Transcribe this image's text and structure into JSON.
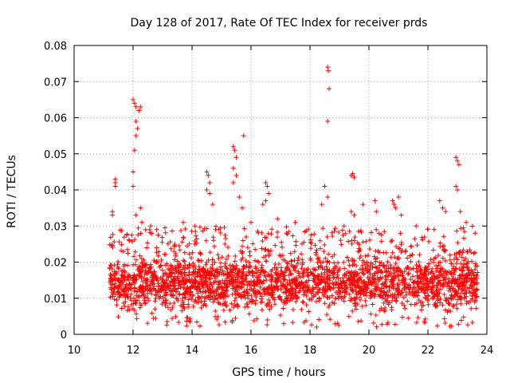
{
  "chart_data": {
    "type": "scatter",
    "title": "Day 128 of 2017, Rate Of TEC Index for receiver prds",
    "xlabel": "GPS time / hours",
    "ylabel": "ROTI / TECUs",
    "xlim": [
      10,
      24
    ],
    "ylim": [
      0,
      0.08
    ],
    "xticks": [
      10,
      12,
      14,
      16,
      18,
      20,
      22,
      24
    ],
    "yticks": [
      0,
      0.01,
      0.02,
      0.03,
      0.04,
      0.05,
      0.06,
      0.07,
      0.08
    ],
    "xtick_labels": [
      "10",
      "12",
      "14",
      "16",
      "18",
      "20",
      "22",
      "24"
    ],
    "ytick_labels": [
      "0",
      "0.01",
      "0.02",
      "0.03",
      "0.04",
      "0.05",
      "0.06",
      "0.07",
      "0.08"
    ],
    "grid": "dotted",
    "marker": "+",
    "marker_color": "#ff0000",
    "data_range_hours": [
      11.2,
      23.7
    ],
    "baseline_band": [
      0.004,
      0.022
    ],
    "outliers": [
      {
        "x": 11.3,
        "y": 0.034
      },
      {
        "x": 11.3,
        "y": 0.033
      },
      {
        "x": 11.4,
        "y": 0.043
      },
      {
        "x": 11.4,
        "y": 0.042
      },
      {
        "x": 11.4,
        "y": 0.041
      },
      {
        "x": 12.0,
        "y": 0.065
      },
      {
        "x": 12.05,
        "y": 0.064
      },
      {
        "x": 12.1,
        "y": 0.063
      },
      {
        "x": 12.2,
        "y": 0.062
      },
      {
        "x": 12.25,
        "y": 0.063
      },
      {
        "x": 12.1,
        "y": 0.059
      },
      {
        "x": 12.15,
        "y": 0.057
      },
      {
        "x": 12.1,
        "y": 0.055
      },
      {
        "x": 12.05,
        "y": 0.051
      },
      {
        "x": 12.0,
        "y": 0.045
      },
      {
        "x": 12.0,
        "y": 0.041
      },
      {
        "x": 12.25,
        "y": 0.035
      },
      {
        "x": 12.1,
        "y": 0.033
      },
      {
        "x": 12.3,
        "y": 0.031
      },
      {
        "x": 14.5,
        "y": 0.045
      },
      {
        "x": 14.55,
        "y": 0.044
      },
      {
        "x": 14.6,
        "y": 0.042
      },
      {
        "x": 14.5,
        "y": 0.04
      },
      {
        "x": 14.6,
        "y": 0.039
      },
      {
        "x": 14.7,
        "y": 0.036
      },
      {
        "x": 15.4,
        "y": 0.052
      },
      {
        "x": 15.45,
        "y": 0.051
      },
      {
        "x": 15.5,
        "y": 0.049
      },
      {
        "x": 15.4,
        "y": 0.046
      },
      {
        "x": 15.5,
        "y": 0.044
      },
      {
        "x": 15.4,
        "y": 0.042
      },
      {
        "x": 15.75,
        "y": 0.055
      },
      {
        "x": 15.6,
        "y": 0.038
      },
      {
        "x": 15.7,
        "y": 0.035
      },
      {
        "x": 16.5,
        "y": 0.042
      },
      {
        "x": 16.55,
        "y": 0.041
      },
      {
        "x": 16.6,
        "y": 0.039
      },
      {
        "x": 16.5,
        "y": 0.037
      },
      {
        "x": 16.4,
        "y": 0.036
      },
      {
        "x": 18.5,
        "y": 0.041
      },
      {
        "x": 18.6,
        "y": 0.038
      },
      {
        "x": 18.4,
        "y": 0.036
      },
      {
        "x": 18.6,
        "y": 0.074
      },
      {
        "x": 18.62,
        "y": 0.073
      },
      {
        "x": 18.65,
        "y": 0.068
      },
      {
        "x": 18.6,
        "y": 0.059
      },
      {
        "x": 19.4,
        "y": 0.044
      },
      {
        "x": 19.45,
        "y": 0.0445
      },
      {
        "x": 19.5,
        "y": 0.0435
      },
      {
        "x": 19.4,
        "y": 0.034
      },
      {
        "x": 19.5,
        "y": 0.033
      },
      {
        "x": 19.8,
        "y": 0.036
      },
      {
        "x": 20.2,
        "y": 0.037
      },
      {
        "x": 20.25,
        "y": 0.034
      },
      {
        "x": 20.8,
        "y": 0.037
      },
      {
        "x": 20.85,
        "y": 0.036
      },
      {
        "x": 21.0,
        "y": 0.038
      },
      {
        "x": 20.9,
        "y": 0.035
      },
      {
        "x": 21.1,
        "y": 0.033
      },
      {
        "x": 22.4,
        "y": 0.037
      },
      {
        "x": 22.5,
        "y": 0.035
      },
      {
        "x": 22.6,
        "y": 0.034
      },
      {
        "x": 22.95,
        "y": 0.049
      },
      {
        "x": 23.0,
        "y": 0.048
      },
      {
        "x": 23.05,
        "y": 0.047
      },
      {
        "x": 22.95,
        "y": 0.041
      },
      {
        "x": 23.0,
        "y": 0.04
      },
      {
        "x": 23.1,
        "y": 0.034
      },
      {
        "x": 13.7,
        "y": 0.031
      },
      {
        "x": 14.1,
        "y": 0.03
      },
      {
        "x": 14.8,
        "y": 0.029
      },
      {
        "x": 16.0,
        "y": 0.031
      },
      {
        "x": 16.9,
        "y": 0.032
      },
      {
        "x": 17.5,
        "y": 0.031
      },
      {
        "x": 12.6,
        "y": 0.03
      },
      {
        "x": 12.8,
        "y": 0.029
      },
      {
        "x": 17.2,
        "y": 0.028
      },
      {
        "x": 21.6,
        "y": 0.03
      },
      {
        "x": 23.3,
        "y": 0.031
      },
      {
        "x": 23.6,
        "y": 0.028
      }
    ]
  }
}
